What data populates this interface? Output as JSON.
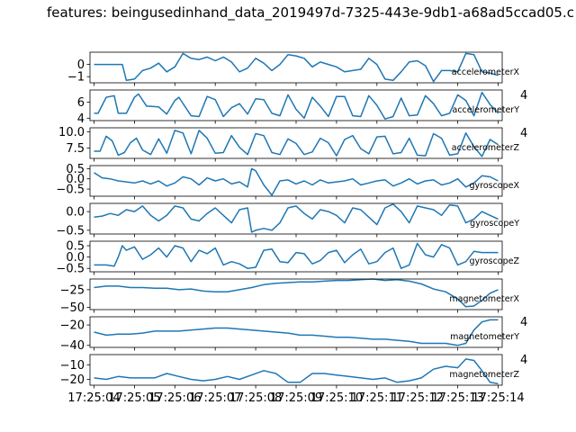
{
  "title": "features: beingusedinhand_data_2019497d-7325-443e-9db1-a68ad5ccad05.c",
  "chart_data": {
    "type": "line",
    "shared_x_ticks": [
      "17:25:04",
      "17:25:05",
      "17:25:06",
      "17:25:07",
      "17:25:08",
      "17:25:09",
      "17:25:10",
      "17:25:11",
      "17:25:12",
      "17:25:13",
      "17:25:14"
    ],
    "series_color": "#1f77b4",
    "subplots": [
      {
        "name": "accelerometerX",
        "ylim": [
          -1.5,
          1.0
        ],
        "yticks": [
          -1,
          0
        ],
        "ytick_labels": [
          "−1",
          "0"
        ],
        "right_tick_label": "",
        "x": [
          0,
          0.7,
          0.8,
          1.0,
          1.2,
          1.4,
          1.6,
          1.8,
          2.0,
          2.2,
          2.4,
          2.6,
          2.8,
          3.0,
          3.2,
          3.4,
          3.6,
          3.8,
          4.0,
          4.2,
          4.4,
          4.6,
          4.8,
          5.0,
          5.2,
          5.4,
          5.6,
          5.8,
          6.0,
          6.2,
          6.4,
          6.6,
          6.8,
          7.0,
          7.2,
          7.4,
          7.6,
          7.8,
          8.0,
          8.2,
          8.4,
          8.6,
          8.8,
          9.0,
          9.2,
          9.4,
          9.6,
          9.8,
          10.0
        ],
        "y": [
          0,
          0,
          -1.3,
          -1.2,
          -0.5,
          -0.3,
          0.1,
          -0.6,
          -0.2,
          0.9,
          0.5,
          0.4,
          0.6,
          0.3,
          0.6,
          0.2,
          -0.6,
          -0.3,
          0.5,
          0.1,
          -0.5,
          0.0,
          0.8,
          0.7,
          0.5,
          -0.2,
          0.2,
          0,
          -0.2,
          -0.6,
          -0.5,
          -0.4,
          0.5,
          0,
          -1.2,
          -1.3,
          -0.6,
          0.2,
          0.3,
          -0.1,
          -1.4,
          -0.5,
          -0.5,
          -0.6,
          0.9,
          0.8,
          -0.6,
          -0.7,
          -0.9
        ]
      },
      {
        "name": "accelerometerY",
        "ylim": [
          3.7,
          7.5
        ],
        "yticks": [
          4,
          6
        ],
        "ytick_labels": [
          "4",
          "6"
        ],
        "right_tick_label": "4",
        "x": [
          0,
          0.1,
          0.3,
          0.5,
          0.6,
          0.8,
          1.0,
          1.1,
          1.3,
          1.6,
          1.8,
          2.0,
          2.1,
          2.4,
          2.6,
          2.8,
          3.0,
          3.2,
          3.4,
          3.6,
          3.8,
          4.0,
          4.2,
          4.4,
          4.6,
          4.8,
          5.0,
          5.2,
          5.4,
          5.6,
          5.8,
          6.0,
          6.2,
          6.4,
          6.6,
          6.8,
          7.0,
          7.2,
          7.4,
          7.6,
          7.8,
          8.0,
          8.2,
          8.4,
          8.6,
          8.8,
          9.0,
          9.2,
          9.4,
          9.6,
          9.8,
          10.0
        ],
        "y": [
          4.6,
          4.6,
          6.6,
          6.8,
          4.6,
          4.6,
          6.6,
          7.0,
          5.5,
          5.4,
          4.5,
          6.2,
          6.6,
          4.3,
          4.2,
          6.7,
          6.3,
          4.2,
          5.3,
          5.8,
          4.5,
          6.4,
          6.3,
          4.6,
          4.3,
          6.9,
          5.1,
          4.0,
          6.6,
          5.5,
          4.2,
          6.7,
          6.7,
          4.3,
          4.2,
          6.8,
          5.6,
          3.9,
          4.2,
          6.5,
          4.3,
          4.4,
          6.8,
          5.8,
          4.3,
          4.6,
          6.9,
          6.2,
          4.3,
          7.2,
          5.7,
          4.6
        ]
      },
      {
        "name": "accelerometerZ",
        "ylim": [
          5.9,
          10.6
        ],
        "yticks": [
          7.5,
          10.0
        ],
        "ytick_labels": [
          "7.5",
          "10.0"
        ],
        "right_tick_label": "4",
        "x": [
          0,
          0.15,
          0.3,
          0.45,
          0.6,
          0.75,
          0.9,
          1.05,
          1.2,
          1.4,
          1.6,
          1.8,
          2.0,
          2.2,
          2.4,
          2.6,
          2.8,
          3.0,
          3.2,
          3.4,
          3.6,
          3.8,
          4.0,
          4.2,
          4.4,
          4.6,
          4.8,
          5.0,
          5.2,
          5.4,
          5.6,
          5.8,
          6.0,
          6.2,
          6.4,
          6.6,
          6.8,
          7.0,
          7.2,
          7.4,
          7.6,
          7.8,
          8.0,
          8.2,
          8.4,
          8.6,
          8.8,
          9.0,
          9.2,
          9.4,
          9.6,
          9.8,
          10.0
        ],
        "y": [
          7.0,
          7.0,
          9.3,
          8.6,
          6.4,
          6.8,
          8.3,
          9.0,
          7.2,
          6.5,
          8.9,
          6.7,
          10.2,
          9.8,
          6.6,
          10.2,
          9.0,
          6.7,
          6.8,
          9.4,
          7.6,
          6.5,
          9.7,
          9.4,
          6.8,
          6.5,
          8.9,
          8.2,
          6.5,
          6.9,
          9.0,
          8.3,
          6.3,
          8.8,
          9.4,
          7.4,
          6.6,
          9.2,
          9.3,
          6.6,
          6.8,
          9.0,
          6.4,
          6.3,
          9.7,
          9.0,
          6.4,
          6.6,
          9.8,
          7.7,
          6.2,
          8.8,
          8.0
        ]
      },
      {
        "name": "gyroscopeX",
        "ylim": [
          -0.85,
          0.65
        ],
        "yticks": [
          -0.5,
          0.0,
          0.5
        ],
        "ytick_labels": [
          "−0.5",
          "0.0",
          "0.5"
        ],
        "right_tick_label": "",
        "x": [
          0,
          0.2,
          0.4,
          0.6,
          0.8,
          1.0,
          1.2,
          1.4,
          1.6,
          1.8,
          2.0,
          2.2,
          2.4,
          2.6,
          2.8,
          3.0,
          3.2,
          3.4,
          3.6,
          3.8,
          3.9,
          4.0,
          4.2,
          4.4,
          4.6,
          4.8,
          5.0,
          5.2,
          5.4,
          5.6,
          5.8,
          6.0,
          6.2,
          6.4,
          6.6,
          6.8,
          7.0,
          7.2,
          7.4,
          7.6,
          7.8,
          8.0,
          8.2,
          8.4,
          8.6,
          8.8,
          9.0,
          9.2,
          9.4,
          9.6,
          9.8,
          10.0
        ],
        "y": [
          0.3,
          0.05,
          0.0,
          -0.1,
          -0.15,
          -0.2,
          -0.1,
          -0.25,
          -0.1,
          -0.35,
          -0.2,
          0.1,
          0.0,
          -0.3,
          0.05,
          -0.1,
          0.0,
          -0.25,
          -0.15,
          -0.4,
          0.5,
          0.4,
          -0.3,
          -0.8,
          -0.1,
          -0.05,
          -0.25,
          -0.1,
          -0.3,
          -0.05,
          -0.2,
          -0.15,
          -0.1,
          0.0,
          -0.3,
          -0.2,
          -0.1,
          -0.05,
          -0.35,
          -0.2,
          0.0,
          -0.25,
          -0.1,
          -0.05,
          -0.3,
          -0.2,
          0.0,
          -0.4,
          -0.2,
          0.15,
          0.1,
          -0.1
        ]
      },
      {
        "name": "gyroscopeY",
        "ylim": [
          -0.6,
          0.22
        ],
        "yticks": [
          -0.5,
          0.0
        ],
        "ytick_labels": [
          "−0.5",
          "0.0"
        ],
        "right_tick_label": "",
        "x": [
          0,
          0.2,
          0.4,
          0.6,
          0.8,
          1.0,
          1.2,
          1.4,
          1.6,
          1.8,
          2.0,
          2.2,
          2.4,
          2.6,
          2.8,
          3.0,
          3.2,
          3.4,
          3.6,
          3.8,
          3.9,
          4.0,
          4.2,
          4.4,
          4.6,
          4.8,
          5.0,
          5.2,
          5.4,
          5.6,
          5.8,
          6.0,
          6.2,
          6.4,
          6.6,
          6.8,
          7.0,
          7.2,
          7.4,
          7.6,
          7.8,
          8.0,
          8.2,
          8.4,
          8.6,
          8.8,
          9.0,
          9.2,
          9.4,
          9.6,
          9.8,
          10.0
        ],
        "y": [
          -0.15,
          -0.12,
          -0.05,
          -0.1,
          0.05,
          0.0,
          0.15,
          -0.1,
          -0.25,
          -0.1,
          0.15,
          0.1,
          -0.2,
          -0.25,
          -0.05,
          0.1,
          -0.1,
          -0.3,
          0.05,
          0.1,
          -0.55,
          -0.5,
          -0.45,
          -0.5,
          -0.3,
          0.1,
          0.15,
          -0.05,
          -0.2,
          0.05,
          0.0,
          -0.1,
          -0.3,
          0.1,
          0.05,
          -0.15,
          -0.35,
          0.1,
          0.2,
          0.0,
          -0.3,
          0.15,
          0.1,
          0.05,
          -0.1,
          0.18,
          0.15,
          -0.3,
          -0.2,
          0.0,
          -0.1,
          -0.2
        ]
      },
      {
        "name": "gyroscopeZ",
        "ylim": [
          -0.65,
          0.7
        ],
        "yticks": [
          -0.5,
          0.0,
          0.5
        ],
        "ytick_labels": [
          "−0.5",
          "0.0",
          "0.5"
        ],
        "right_tick_label": "",
        "x": [
          0,
          0.3,
          0.5,
          0.6,
          0.7,
          0.8,
          1.0,
          1.2,
          1.4,
          1.6,
          1.8,
          2.0,
          2.2,
          2.4,
          2.6,
          2.8,
          3.0,
          3.2,
          3.4,
          3.6,
          3.8,
          4.0,
          4.2,
          4.4,
          4.6,
          4.8,
          5.0,
          5.2,
          5.4,
          5.6,
          5.8,
          6.0,
          6.2,
          6.4,
          6.6,
          6.8,
          7.0,
          7.2,
          7.4,
          7.6,
          7.8,
          8.0,
          8.2,
          8.4,
          8.6,
          8.8,
          9.0,
          9.2,
          9.4,
          9.6,
          9.8,
          10.0
        ],
        "y": [
          -0.35,
          -0.35,
          -0.4,
          0.0,
          0.5,
          0.3,
          0.45,
          -0.1,
          0.1,
          0.4,
          0.0,
          0.5,
          0.4,
          -0.2,
          0.3,
          0.15,
          0.4,
          -0.35,
          -0.2,
          -0.3,
          -0.5,
          -0.45,
          0.3,
          0.35,
          -0.2,
          -0.25,
          0.2,
          0.15,
          -0.3,
          -0.15,
          0.2,
          0.3,
          -0.25,
          0.1,
          0.35,
          -0.3,
          -0.2,
          0.2,
          0.4,
          -0.5,
          -0.35,
          0.6,
          0.1,
          0.0,
          0.55,
          0.4,
          -0.35,
          -0.2,
          0.25,
          0.2,
          0.2,
          0.2
        ]
      },
      {
        "name": "magnetometerX",
        "ylim": [
          -53,
          -10
        ],
        "yticks": [
          -50,
          -25
        ],
        "ytick_labels": [
          "−50",
          "−25"
        ],
        "right_tick_label": "",
        "x": [
          0,
          0.3,
          0.6,
          0.9,
          1.2,
          1.5,
          1.8,
          2.1,
          2.4,
          2.7,
          3.0,
          3.3,
          3.6,
          3.9,
          4.2,
          4.5,
          4.8,
          5.1,
          5.4,
          5.7,
          6.0,
          6.3,
          6.6,
          6.9,
          7.2,
          7.5,
          7.8,
          8.1,
          8.4,
          8.7,
          9.0,
          9.2,
          9.4,
          9.6,
          9.8,
          10.0
        ],
        "y": [
          -22,
          -20,
          -20,
          -22,
          -22,
          -23,
          -23,
          -25,
          -24,
          -27,
          -28,
          -28,
          -25,
          -22,
          -18,
          -16,
          -15,
          -14,
          -14,
          -13,
          -12,
          -12,
          -11,
          -10,
          -12,
          -11,
          -13,
          -17,
          -24,
          -28,
          -38,
          -49,
          -48,
          -40,
          -30,
          -25
        ]
      },
      {
        "name": "magnetometerY",
        "ylim": [
          -42,
          -12
        ],
        "yticks": [
          -40,
          -20
        ],
        "ytick_labels": [
          "−40",
          "−20"
        ],
        "right_tick_label": "4",
        "x": [
          0,
          0.3,
          0.6,
          0.9,
          1.2,
          1.5,
          1.8,
          2.1,
          2.4,
          2.7,
          3.0,
          3.3,
          3.6,
          3.9,
          4.2,
          4.5,
          4.8,
          5.1,
          5.4,
          5.7,
          6.0,
          6.3,
          6.6,
          6.9,
          7.2,
          7.5,
          7.8,
          8.1,
          8.4,
          8.7,
          9.0,
          9.2,
          9.4,
          9.6,
          9.8,
          10.0
        ],
        "y": [
          -27,
          -30,
          -29,
          -29,
          -28,
          -26,
          -26,
          -26,
          -25,
          -24,
          -23,
          -23,
          -24,
          -25,
          -26,
          -27,
          -28,
          -30,
          -30,
          -31,
          -32,
          -32,
          -33,
          -34,
          -34,
          -35,
          -36,
          -38,
          -38,
          -38,
          -40,
          -38,
          -25,
          -17,
          -15,
          -15
        ]
      },
      {
        "name": "magnetometerZ",
        "ylim": [
          -24,
          -3
        ],
        "yticks": [
          -20,
          -10
        ],
        "ytick_labels": [
          "−20",
          "−10"
        ],
        "right_tick_label": "4",
        "x": [
          0,
          0.3,
          0.6,
          0.9,
          1.2,
          1.5,
          1.8,
          2.1,
          2.4,
          2.7,
          3.0,
          3.3,
          3.6,
          3.9,
          4.2,
          4.5,
          4.8,
          5.1,
          5.4,
          5.7,
          6.0,
          6.3,
          6.6,
          6.9,
          7.2,
          7.5,
          7.8,
          8.1,
          8.4,
          8.7,
          9.0,
          9.2,
          9.4,
          9.6,
          9.8,
          10.0
        ],
        "y": [
          -19,
          -20,
          -18,
          -19,
          -19,
          -19,
          -16,
          -18,
          -20,
          -21,
          -20,
          -18,
          -20,
          -17,
          -14,
          -16,
          -22,
          -22,
          -16,
          -16,
          -17,
          -18,
          -19,
          -20,
          -19,
          -22,
          -21,
          -19,
          -13,
          -11,
          -12,
          -6,
          -7,
          -14,
          -22,
          -23
        ]
      }
    ]
  }
}
